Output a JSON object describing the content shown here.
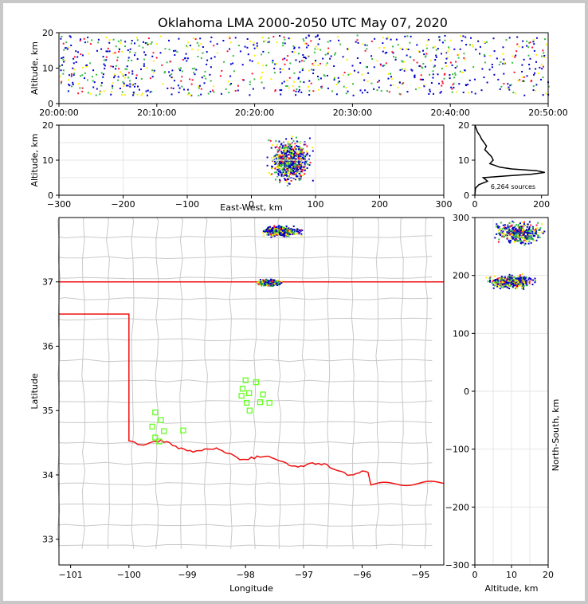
{
  "chart_data": {
    "type": "scatter",
    "title": "Oklahoma LMA 2000-2050 UTC May 07, 2020",
    "colors": {
      "state_border": "#ee1111",
      "county_lines": "#c8c8c8",
      "station_marker": "#66ff22",
      "density_low": "#0000cc",
      "density_mid": "#33bb44",
      "density_high": "#ffee00",
      "density_peak": "#ff1133",
      "curve": "#000000"
    },
    "panels": {
      "time_height": {
        "ylabel": "Altitude, km",
        "ylim": [
          0,
          20
        ],
        "yticks": [
          "0",
          "10",
          "20"
        ],
        "xticks": [
          "20:00:00",
          "20:10:00",
          "20:20:00",
          "20:30:00",
          "20:40:00",
          "20:50:00"
        ],
        "xlim_minutes": [
          0,
          50
        ]
      },
      "ew_height": {
        "xlabel": "East-West, km",
        "ylabel": "Altitude, km",
        "xlim": [
          -300,
          300
        ],
        "ylim": [
          0,
          20
        ],
        "xticks": [
          "−300",
          "−200",
          "−100",
          "0",
          "100",
          "200",
          "300"
        ],
        "yticks": [
          "0",
          "10",
          "20"
        ],
        "clusters": [
          {
            "x_center": 60,
            "alt_center": 10,
            "x_spread": 40,
            "alt_spread": 8
          }
        ]
      },
      "histogram": {
        "xlim": [
          0,
          220
        ],
        "ylim": [
          0,
          20
        ],
        "xticks": [
          "0",
          "200"
        ],
        "yticks": [
          "0",
          "10",
          "20"
        ],
        "annotation": "6,264 sources",
        "profile_alt_km": [
          0,
          2,
          3,
          4,
          5,
          5.5,
          6,
          6.5,
          7,
          7.5,
          8,
          8.5,
          9,
          10,
          11,
          12,
          13,
          14,
          15,
          16,
          17,
          18,
          19,
          20
        ],
        "profile_count": [
          0,
          2,
          12,
          38,
          25,
          95,
          170,
          210,
          185,
          110,
          75,
          60,
          45,
          55,
          50,
          40,
          30,
          35,
          28,
          20,
          15,
          8,
          4,
          0
        ]
      },
      "map": {
        "xlabel": "Longitude",
        "ylabel": "Latitude",
        "xlim": [
          -101.2,
          -94.6
        ],
        "ylim": [
          32.6,
          38
        ],
        "xticks": [
          "−101",
          "−100",
          "−99",
          "−98",
          "−97",
          "−96",
          "−95"
        ],
        "yticks": [
          "33",
          "34",
          "35",
          "36",
          "37"
        ],
        "clusters": [
          {
            "lon": -97.4,
            "lat": 37.8,
            "lon_spread": 0.4,
            "lat_spread": 0.1
          },
          {
            "lon": -97.6,
            "lat": 37.0,
            "lon_spread": 0.25,
            "lat_spread": 0.06
          }
        ],
        "stations": [
          {
            "lon": -99.55,
            "lat": 34.97
          },
          {
            "lon": -99.45,
            "lat": 34.85
          },
          {
            "lon": -99.6,
            "lat": 34.75
          },
          {
            "lon": -99.4,
            "lat": 34.68
          },
          {
            "lon": -99.55,
            "lat": 34.58
          },
          {
            "lon": -99.48,
            "lat": 34.52
          },
          {
            "lon": -99.07,
            "lat": 34.69
          },
          {
            "lon": -98.0,
            "lat": 35.47
          },
          {
            "lon": -97.82,
            "lat": 35.44
          },
          {
            "lon": -98.05,
            "lat": 35.34
          },
          {
            "lon": -98.07,
            "lat": 35.23
          },
          {
            "lon": -97.94,
            "lat": 35.27
          },
          {
            "lon": -97.7,
            "lat": 35.25
          },
          {
            "lon": -97.98,
            "lat": 35.12
          },
          {
            "lon": -97.75,
            "lat": 35.13
          },
          {
            "lon": -97.59,
            "lat": 35.12
          },
          {
            "lon": -97.93,
            "lat": 35.0
          }
        ]
      },
      "ns_height": {
        "xlabel": "Altitude, km",
        "ylabel": "North-South, km",
        "xlim": [
          0,
          20
        ],
        "ylim": [
          -300,
          300
        ],
        "xticks": [
          "0",
          "10",
          "20"
        ],
        "yticks": [
          "300",
          "200",
          "100",
          "0",
          "−100",
          "−200",
          "−300"
        ],
        "clusters": [
          {
            "alt_center": 10,
            "ns_center": 190,
            "alt_spread": 8,
            "ns_spread": 15
          },
          {
            "alt_center": 12,
            "ns_center": 275,
            "alt_spread": 8,
            "ns_spread": 25
          }
        ]
      }
    }
  }
}
